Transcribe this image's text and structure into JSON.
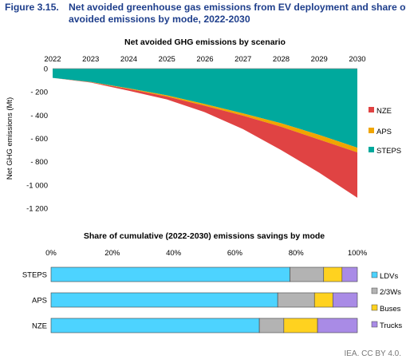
{
  "figure": {
    "label": "Figure 3.15.",
    "title_line1": "Net avoided greenhouse gas emissions from EV deployment and share of",
    "title_line2": "avoided emissions by mode, 2022-2030",
    "credit": "IEA. CC BY 4.0."
  },
  "colors": {
    "NZE": "#e04343",
    "APS": "#f0a500",
    "STEPS": "#00a99d",
    "LDVs": "#4dd3ff",
    "2/3Ws": "#b3b3b3",
    "Buses": "#ffd21f",
    "Trucks": "#a98be6"
  },
  "chart_data": [
    {
      "type": "area",
      "title": "Net avoided GHG emissions by scenario",
      "xlabel": "",
      "ylabel": "Net GHG emissions (Mt)",
      "x": [
        "2022",
        "2023",
        "2024",
        "2025",
        "2026",
        "2027",
        "2028",
        "2029",
        "2030"
      ],
      "ylim": [
        -1200,
        0
      ],
      "yticks": [
        0,
        -200,
        -400,
        -600,
        -800,
        -1000,
        -1200
      ],
      "ytick_labels": [
        "0",
        "- 200",
        "- 400",
        "- 600",
        "- 800",
        "-1 000",
        "-1 200"
      ],
      "x_axis_position": "top",
      "legend": "right",
      "series": [
        {
          "name": "STEPS",
          "values": [
            -80,
            -115,
            -170,
            -230,
            -305,
            -385,
            -470,
            -570,
            -680
          ]
        },
        {
          "name": "APS",
          "values": [
            -80,
            -117,
            -175,
            -240,
            -320,
            -405,
            -500,
            -610,
            -720
          ]
        },
        {
          "name": "NZE",
          "values": [
            -80,
            -120,
            -190,
            -265,
            -375,
            -520,
            -700,
            -895,
            -1110
          ]
        }
      ]
    },
    {
      "type": "bar",
      "orientation": "horizontal",
      "stacked": true,
      "title": "Share of cumulative (2022-2030) emissions savings by mode",
      "categories": [
        "STEPS",
        "APS",
        "NZE"
      ],
      "xlim": [
        0,
        100
      ],
      "xticks": [
        0,
        20,
        40,
        60,
        80,
        100
      ],
      "xtick_labels": [
        "0%",
        "20%",
        "40%",
        "60%",
        "80%",
        "100%"
      ],
      "x_axis_position": "top",
      "legend": "right",
      "series": [
        {
          "name": "LDVs",
          "values": [
            78,
            74,
            68
          ]
        },
        {
          "name": "2/3Ws",
          "values": [
            11,
            12,
            8
          ]
        },
        {
          "name": "Buses",
          "values": [
            6,
            6,
            11
          ]
        },
        {
          "name": "Trucks",
          "values": [
            5,
            8,
            13
          ]
        }
      ]
    }
  ]
}
